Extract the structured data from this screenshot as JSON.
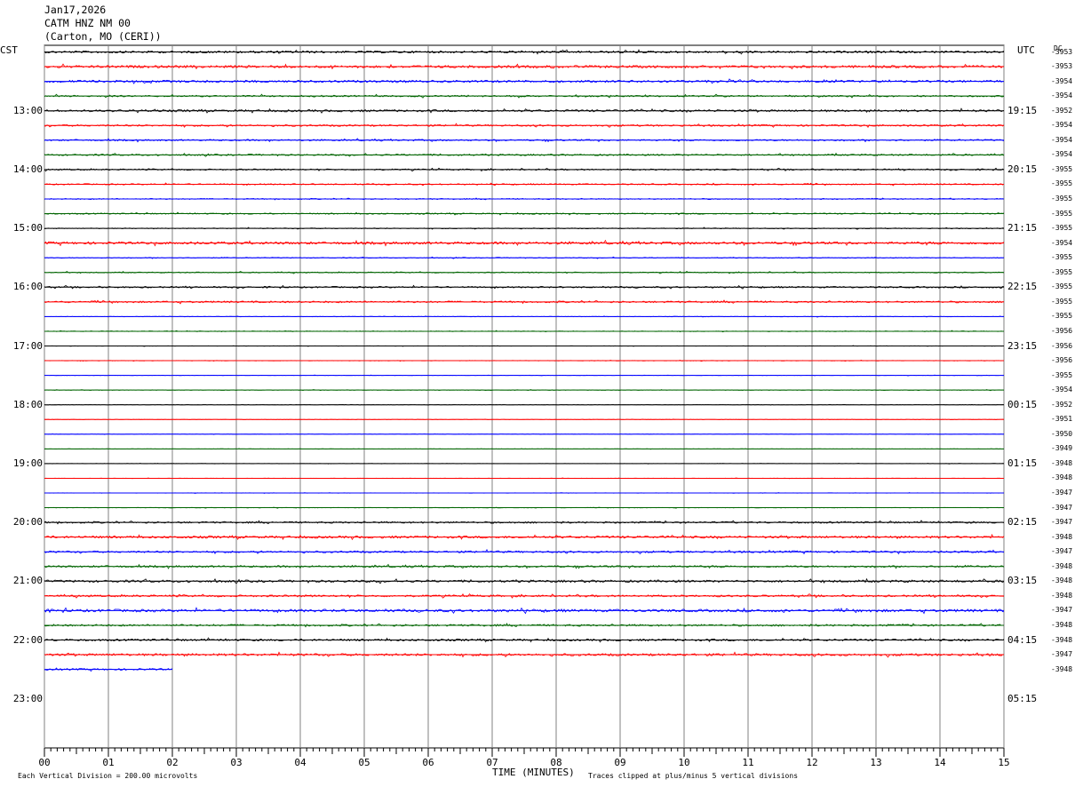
{
  "header": {
    "date": "Jan17,2026",
    "station": "CATM HNZ NM 00",
    "location": "(Carton, MO (CERI))"
  },
  "left_tz": "CST",
  "right_tz": "UTC",
  "dc_header": "DC",
  "footer": {
    "scale_note": "Each Vertical Division =  200.00 microvolts",
    "clip_note": "Traces clipped at plus/minus 5 vertical divisions",
    "xlabel": "TIME (MINUTES)"
  },
  "colors": {
    "black": "#000000",
    "red": "#ff0000",
    "blue": "#0000ff",
    "green": "#006400"
  },
  "chart_data": {
    "type": "line",
    "xlabel": "TIME (MINUTES)",
    "xlim": [
      0,
      15
    ],
    "x_ticks": [
      "00",
      "01",
      "02",
      "03",
      "04",
      "05",
      "06",
      "07",
      "08",
      "09",
      "10",
      "11",
      "12",
      "13",
      "14",
      "15"
    ],
    "left_hour_labels": [
      "13:00",
      "14:00",
      "15:00",
      "16:00",
      "17:00",
      "18:00",
      "19:00",
      "20:00",
      "21:00",
      "22:00",
      "23:00"
    ],
    "right_hour_labels": [
      "19:15",
      "20:15",
      "21:15",
      "22:15",
      "23:15",
      "00:15",
      "01:15",
      "02:15",
      "03:15",
      "04:15",
      "05:15"
    ],
    "row_colors": [
      "black",
      "red",
      "blue",
      "green"
    ],
    "dc_offsets": [
      "-3953",
      "-3953",
      "-3954",
      "-3954",
      "-3952",
      "-3954",
      "-3954",
      "-3954",
      "-3955",
      "-3955",
      "-3955",
      "-3955",
      "-3955",
      "-3954",
      "-3955",
      "-3955",
      "-3955",
      "-3955",
      "-3955",
      "-3956",
      "-3956",
      "-3956",
      "-3955",
      "-3954",
      "-3952",
      "-3951",
      "-3950",
      "-3949",
      "-3948",
      "-3948",
      "-3947",
      "-3947",
      "-3947",
      "-3948",
      "-3947",
      "-3948",
      "-3948",
      "-3948",
      "-3947",
      "-3948",
      "-3948",
      "-3947",
      "-3948"
    ],
    "row_amplitude": [
      1.2,
      1.4,
      1.3,
      0.9,
      1.2,
      1.0,
      0.9,
      0.9,
      0.8,
      0.7,
      0.6,
      0.7,
      0.5,
      1.4,
      0.5,
      0.6,
      0.9,
      1.0,
      0.3,
      0.4,
      0.2,
      0.3,
      0.2,
      0.3,
      0.2,
      0.2,
      0.2,
      0.2,
      0.2,
      0.2,
      0.2,
      0.3,
      1.0,
      1.3,
      1.1,
      1.1,
      1.3,
      1.1,
      1.5,
      1.1,
      1.1,
      1.3,
      1.0
    ],
    "trace_end_minute": 2.0
  }
}
